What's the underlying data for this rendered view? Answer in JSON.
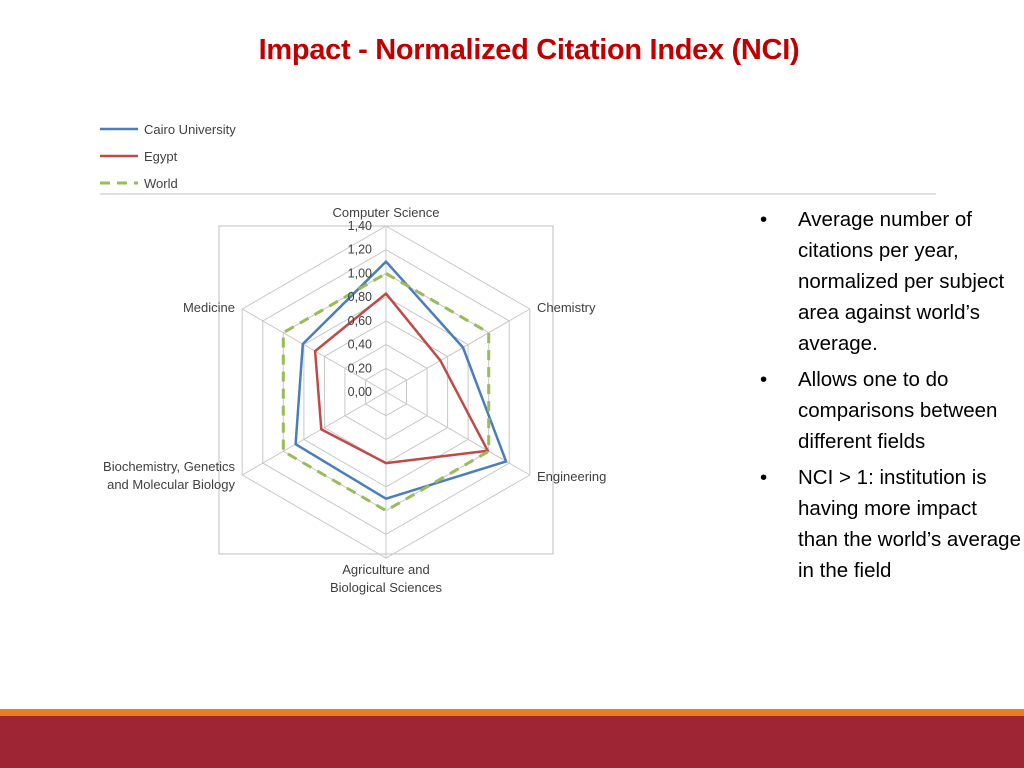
{
  "slide": {
    "title": "Impact - Normalized Citation Index (NCI)",
    "bullets": [
      "Average number of citations per year, normalized per subject area against world’s average.",
      "Allows one to do comparisons between different fields",
      "NCI > 1: institution is having more impact than the world’s average in the field"
    ],
    "bullet_symbol": "•",
    "colors": {
      "title": "#c00000",
      "band_orange": "#ec7c20",
      "band_red": "#9e2533"
    }
  },
  "chart_data": {
    "type": "radar",
    "title": "",
    "axes": [
      [
        "Computer Science"
      ],
      [
        "Chemistry"
      ],
      [
        "Engineering"
      ],
      [
        "Agriculture and",
        "Biological Sciences"
      ],
      [
        "Biochemistry, Genetics",
        "and Molecular Biology"
      ],
      [
        "Medicine"
      ]
    ],
    "ticks": [
      "0,00",
      "0,20",
      "0,40",
      "0,60",
      "0,80",
      "1,00",
      "1,20",
      "1,40"
    ],
    "rmin": 0,
    "rmax": 1.4,
    "grid": true,
    "legend_position": "top-left",
    "series": [
      {
        "name": "Cairo University",
        "values": [
          1.1,
          0.75,
          1.17,
          0.9,
          0.88,
          0.81
        ],
        "color": "#4a7ebb",
        "dashed": false
      },
      {
        "name": "Egypt",
        "values": [
          0.83,
          0.53,
          0.99,
          0.6,
          0.63,
          0.69
        ],
        "color": "#be4b48",
        "dashed": false
      },
      {
        "name": "World",
        "values": [
          1.0,
          1.0,
          1.0,
          1.0,
          1.0,
          1.0
        ],
        "color": "#9bbb59",
        "dashed": true
      }
    ]
  }
}
